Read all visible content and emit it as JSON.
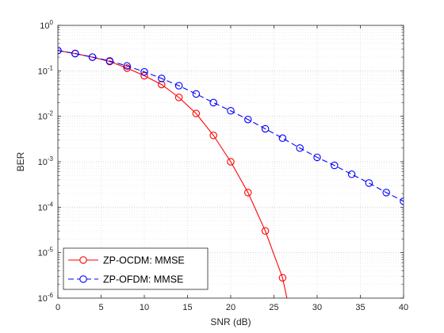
{
  "chart_data": {
    "type": "line",
    "xlabel": "SNR (dB)",
    "ylabel": "BER",
    "x_scale": "linear",
    "y_scale": "log",
    "xlim": [
      0,
      40
    ],
    "ylim": [
      1e-06,
      1
    ],
    "x_ticks": [
      0,
      5,
      10,
      15,
      20,
      25,
      30,
      35,
      40
    ],
    "y_ticks": [
      {
        "value": 1e-06,
        "base": "10",
        "exp": "-6"
      },
      {
        "value": 1e-05,
        "base": "10",
        "exp": "-5"
      },
      {
        "value": 0.0001,
        "base": "10",
        "exp": "-4"
      },
      {
        "value": 0.001,
        "base": "10",
        "exp": "-3"
      },
      {
        "value": 0.01,
        "base": "10",
        "exp": "-2"
      },
      {
        "value": 0.1,
        "base": "10",
        "exp": "-1"
      },
      {
        "value": 1,
        "base": "10",
        "exp": "0"
      }
    ],
    "grid": "major and minor, dotted",
    "legend_position": "bottom-left",
    "series": [
      {
        "name": "ZP-OCDM: MMSE",
        "color": "#ff0000",
        "line_style": "solid",
        "marker": "circle",
        "x": [
          0,
          2,
          4,
          6,
          8,
          10,
          12,
          14,
          16,
          18,
          20,
          22,
          24,
          26,
          26.5
        ],
        "y": [
          0.28,
          0.24,
          0.2,
          0.16,
          0.115,
          0.078,
          0.05,
          0.026,
          0.0115,
          0.0038,
          0.001,
          0.00021,
          3e-05,
          2.8e-06,
          1e-06
        ]
      },
      {
        "name": "ZP-OFDM: MMSE",
        "color": "#0000ff",
        "line_style": "dashed",
        "marker": "circle",
        "x": [
          0,
          2,
          4,
          6,
          8,
          10,
          12,
          14,
          16,
          18,
          20,
          22,
          24,
          26,
          28,
          30,
          32,
          34,
          36,
          38,
          40
        ],
        "y": [
          0.28,
          0.24,
          0.2,
          0.165,
          0.128,
          0.095,
          0.068,
          0.047,
          0.031,
          0.02,
          0.0132,
          0.0085,
          0.0053,
          0.0033,
          0.002,
          0.00125,
          0.00083,
          0.00053,
          0.00034,
          0.00021,
          0.000135
        ]
      }
    ]
  }
}
